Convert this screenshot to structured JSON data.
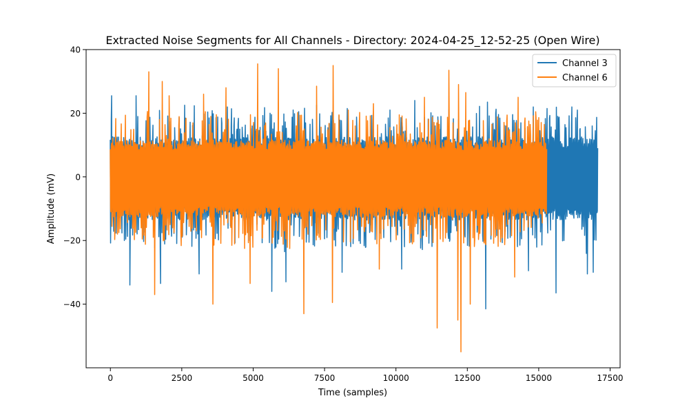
{
  "chart_data": {
    "type": "line",
    "title": "Extracted Noise Segments for All Channels - Directory: 2024-04-25_12-52-25 (Open Wire)",
    "xlabel": "Time (samples)",
    "ylabel": "Amplitude (mV)",
    "xlim": [
      -850,
      17850
    ],
    "ylim": [
      -60,
      40
    ],
    "xticks": [
      0,
      2500,
      5000,
      7500,
      10000,
      12500,
      15000,
      17500
    ],
    "xtick_labels": [
      "0",
      "2500",
      "5000",
      "7500",
      "10000",
      "12500",
      "15000",
      "17500"
    ],
    "yticks": [
      -40,
      -20,
      0,
      20,
      40
    ],
    "ytick_labels": [
      "−40",
      "−20",
      "0",
      "20",
      "40"
    ],
    "grid": false,
    "legend_position": "top-right",
    "series": [
      {
        "name": "Channel 3",
        "color": "#1f77b4",
        "x_range": [
          0,
          17050
        ],
        "typical_range": [
          -13,
          12
        ],
        "peaks": [
          {
            "x": 40,
            "y": 25.5
          },
          {
            "x": 880,
            "y": 25.5
          },
          {
            "x": 1700,
            "y": 20.5
          },
          {
            "x": 2600,
            "y": 22.5
          },
          {
            "x": 4100,
            "y": 22.0
          },
          {
            "x": 5600,
            "y": 20.0
          },
          {
            "x": 6400,
            "y": 21.0
          },
          {
            "x": 7200,
            "y": 22.5
          },
          {
            "x": 8300,
            "y": 21.5
          },
          {
            "x": 9800,
            "y": 21.0
          },
          {
            "x": 10650,
            "y": 24.0
          },
          {
            "x": 11850,
            "y": 21.0
          },
          {
            "x": 13200,
            "y": 23.5
          },
          {
            "x": 14800,
            "y": 22.0
          },
          {
            "x": 15300,
            "y": 21.5
          },
          {
            "x": 15650,
            "y": 19.0
          },
          {
            "x": 16150,
            "y": 22.0
          },
          {
            "x": 16850,
            "y": 16.0
          },
          {
            "x": 16980,
            "y": 14.5
          }
        ],
        "troughs": [
          {
            "x": 680,
            "y": -34.0
          },
          {
            "x": 1750,
            "y": -33.5
          },
          {
            "x": 3100,
            "y": -30.5
          },
          {
            "x": 5650,
            "y": -36.0
          },
          {
            "x": 6150,
            "y": -33.0
          },
          {
            "x": 8100,
            "y": -30.0
          },
          {
            "x": 10200,
            "y": -29.0
          },
          {
            "x": 13150,
            "y": -41.5
          },
          {
            "x": 14650,
            "y": -29.5
          },
          {
            "x": 15600,
            "y": -36.5
          },
          {
            "x": 16700,
            "y": -30.5
          },
          {
            "x": 16900,
            "y": -30.0
          }
        ]
      },
      {
        "name": "Channel 6",
        "color": "#ff7f0e",
        "x_range": [
          0,
          15270
        ],
        "typical_range": [
          -12,
          11
        ],
        "peaks": [
          {
            "x": 1350,
            "y": 33.0
          },
          {
            "x": 1800,
            "y": 30.0
          },
          {
            "x": 2050,
            "y": 25.5
          },
          {
            "x": 3250,
            "y": 26.0
          },
          {
            "x": 4060,
            "y": 28.0
          },
          {
            "x": 5150,
            "y": 35.5
          },
          {
            "x": 5880,
            "y": 34.0
          },
          {
            "x": 7200,
            "y": 28.5
          },
          {
            "x": 7800,
            "y": 35.0
          },
          {
            "x": 9200,
            "y": 23.0
          },
          {
            "x": 11000,
            "y": 25.0
          },
          {
            "x": 11840,
            "y": 33.5
          },
          {
            "x": 12180,
            "y": 29.0
          },
          {
            "x": 12450,
            "y": 26.5
          },
          {
            "x": 14270,
            "y": 25.0
          }
        ],
        "troughs": [
          {
            "x": 1550,
            "y": -37.0
          },
          {
            "x": 3600,
            "y": -40.0
          },
          {
            "x": 4900,
            "y": -33.5
          },
          {
            "x": 6780,
            "y": -43.0
          },
          {
            "x": 7770,
            "y": -39.5
          },
          {
            "x": 9400,
            "y": -29.0
          },
          {
            "x": 11430,
            "y": -47.5
          },
          {
            "x": 12150,
            "y": -45.0
          },
          {
            "x": 12280,
            "y": -55.0
          },
          {
            "x": 12600,
            "y": -40.0
          },
          {
            "x": 14150,
            "y": -31.5
          }
        ]
      }
    ]
  }
}
